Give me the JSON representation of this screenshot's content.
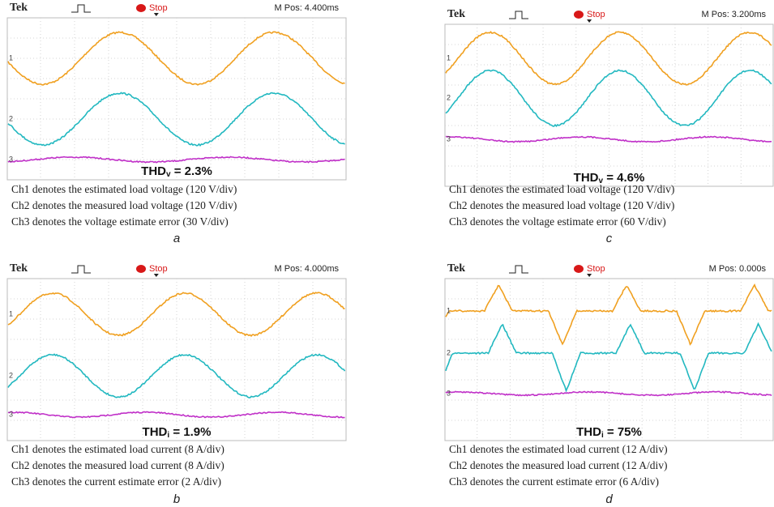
{
  "panels": [
    {
      "header": {
        "brand": "Tek",
        "status": "Stop",
        "position": "M Pos: 4.400ms"
      },
      "channels": [
        "1",
        "2",
        "3"
      ],
      "thd": {
        "symbol": "THD",
        "subscript": "v",
        "value": " = 2.3%"
      },
      "caption": [
        "Ch1 denotes the estimated load voltage (120 V/div)",
        "Ch2 denotes the measured load voltage (120 V/div)",
        "Ch3 denotes the voltage estimate error (30 V/div)"
      ],
      "label": "a"
    },
    {
      "header": {
        "brand": "Tek",
        "status": "Stop",
        "position": "M Pos: 4.000ms"
      },
      "channels": [
        "1",
        "2",
        "3"
      ],
      "thd": {
        "symbol": "THD",
        "subscript": "i",
        "value": " = 1.9%"
      },
      "caption": [
        "Ch1 denotes the estimated load current (8 A/div)",
        "Ch2 denotes the measured load current (8 A/div)",
        "Ch3 denotes the current estimate error (2 A/div)"
      ],
      "label": "b"
    },
    {
      "header": {
        "brand": "Tek",
        "status": "Stop",
        "position": "M Pos: 3.200ms"
      },
      "channels": [
        "1",
        "2",
        "3"
      ],
      "thd": {
        "symbol": "THD",
        "subscript": "v",
        "value": " = 4.6%"
      },
      "caption": [
        "Ch1 denotes the estimated load voltage (120 V/div)",
        "Ch2 denotes the measured load voltage (120 V/div)",
        "Ch3 denotes the voltage estimate error (60 V/div)"
      ],
      "label": "c"
    },
    {
      "header": {
        "brand": "Tek",
        "status": "Stop",
        "position": "M Pos: 0.000s"
      },
      "channels": [
        "1",
        "2",
        "3"
      ],
      "thd": {
        "symbol": "THD",
        "subscript": "i",
        "value": " = 75%"
      },
      "caption": [
        "Ch1 denotes the estimated load current (12 A/div)",
        "Ch2 denotes the measured load current (12 A/div)",
        "Ch3 denotes the current estimate error (6 A/div)"
      ],
      "label": "d"
    }
  ]
}
